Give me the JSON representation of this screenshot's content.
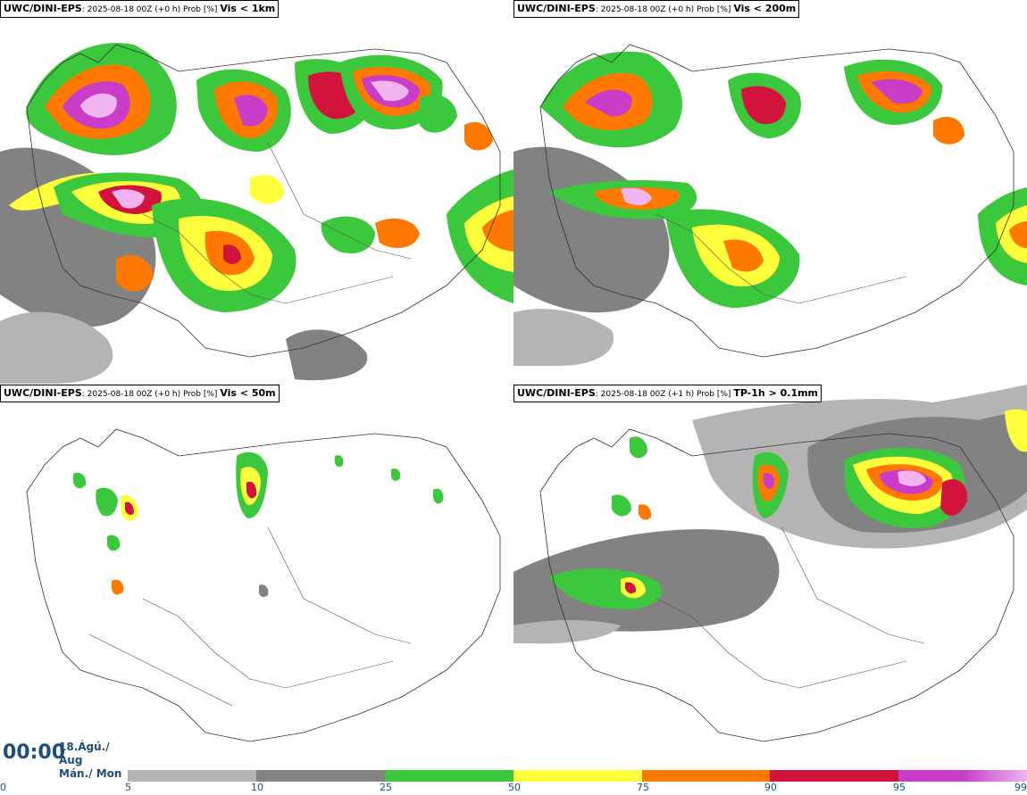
{
  "panels": [
    {
      "source": "UWC/DINI-EPS",
      "meta": ": 2025-08-18 00Z (+0 h) Prob [%]",
      "variable": "Vis < 1km"
    },
    {
      "source": "UWC/DINI-EPS",
      "meta": ": 2025-08-18 00Z (+0 h) Prob [%]",
      "variable": "Vis < 200m"
    },
    {
      "source": "UWC/DINI-EPS",
      "meta": ": 2025-08-18 00Z (+0 h) Prob [%]",
      "variable": "Vis < 50m"
    },
    {
      "source": "UWC/DINI-EPS",
      "meta": ": 2025-08-18 00Z (+1 h) Prob [%]",
      "variable": "TP-1h > 0.1mm"
    }
  ],
  "time": {
    "clock": "00:00",
    "date_line1": "18.Ágú./ Aug",
    "date_line2": "Mán./ Mon"
  },
  "colorbar": {
    "ticks": [
      "0",
      "5",
      "10",
      "25",
      "50",
      "75",
      "90",
      "95",
      "99"
    ],
    "colors": [
      "#ffffff",
      "#b4b4b4",
      "#828282",
      "#3cc83c",
      "#ffff3c",
      "#ff7800",
      "#d2143c",
      "#c83cc8",
      "#f0b4f0"
    ]
  },
  "icons": {
    "map": "iceland-map",
    "legend": "probability-colorbar"
  }
}
